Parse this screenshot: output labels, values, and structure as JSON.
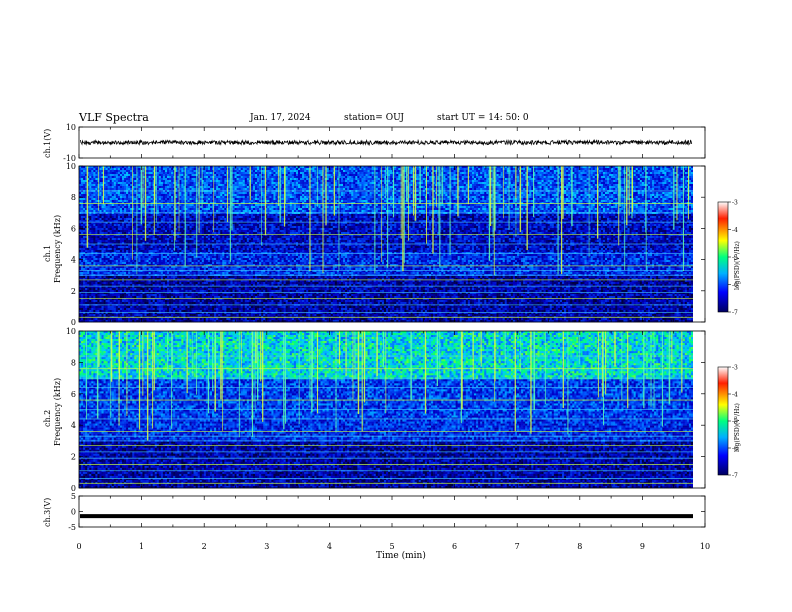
{
  "header": {
    "title": "VLF Spectra",
    "date": "Jan. 17, 2024",
    "station": "station= OUJ",
    "start": "start  UT =   14: 50: 0"
  },
  "chart_data": [
    {
      "type": "line",
      "panel": "ch1-waveform",
      "ylabel": "ch.1(V)",
      "ylim": [
        -10,
        10
      ],
      "yticks": [
        "10",
        "-10"
      ],
      "series": [
        {
          "values_description_level": 0
        }
      ]
    },
    {
      "type": "heatmap",
      "panel": "ch1-spectrogram",
      "ylabel": "ch.1\nFrequency (kHz)",
      "ylabel_ch": "ch.1",
      "ylabel_freq": "Frequency (kHz)",
      "ylim": [
        0,
        10
      ],
      "yticks": [
        "0",
        "2",
        "4",
        "6",
        "8",
        "10"
      ],
      "colorbar": {
        "label": "log(PSD)(V²/Hz)",
        "range": [
          -7,
          -3
        ],
        "ticks": [
          "-3",
          "-4",
          "-5",
          "-6",
          "-7"
        ]
      }
    },
    {
      "type": "heatmap",
      "panel": "ch2-spectrogram",
      "ylabel_ch": "ch.2",
      "ylabel_freq": "Frequency (kHz)",
      "ylim": [
        0,
        10
      ],
      "yticks": [
        "0",
        "2",
        "4",
        "6",
        "8",
        "10"
      ],
      "colorbar": {
        "label": "log(PSD)(V²/Hz)",
        "range": [
          -7,
          -3
        ],
        "ticks": [
          "-3",
          "-4",
          "-5",
          "-6",
          "-7"
        ]
      }
    },
    {
      "type": "line",
      "panel": "ch3-waveform",
      "ylabel": "ch.3(V)",
      "ylim": [
        -5,
        5
      ],
      "yticks": [
        "5",
        "0",
        "-5"
      ],
      "series": [
        {
          "values": [
            -1.5,
            -1.5
          ]
        }
      ]
    }
  ],
  "xaxis": {
    "label": "Time (min)",
    "ticks": [
      "0",
      "1",
      "2",
      "3",
      "4",
      "5",
      "6",
      "7",
      "8",
      "9",
      "10"
    ],
    "range": [
      0,
      10
    ]
  }
}
